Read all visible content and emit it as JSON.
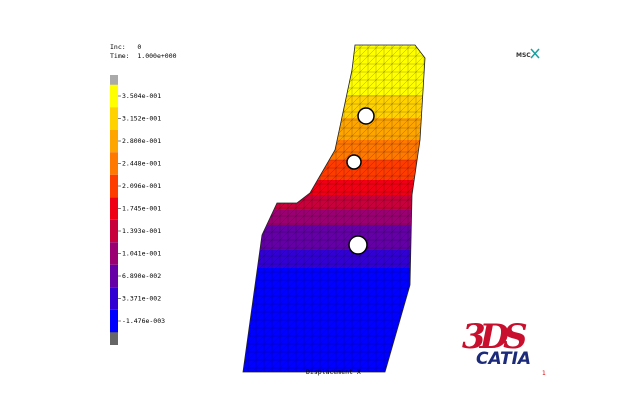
{
  "header": {
    "inc": "Inc:   0",
    "time": "Time:  1.000e+000"
  },
  "legend": {
    "labels": [
      "3.504e-001",
      "3.152e-001",
      "2.800e-001",
      "2.448e-001",
      "2.096e-001",
      "1.745e-001",
      "1.393e-001",
      "1.041e-001",
      "6.890e-002",
      "3.371e-002",
      "-1.476e-003"
    ],
    "colors": [
      "#ffff00",
      "#ffd200",
      "#ffa500",
      "#ff7800",
      "#ff3c00",
      "#f00014",
      "#c8003c",
      "#9b0073",
      "#6400a5",
      "#3200d2",
      "#0000ff"
    ]
  },
  "plot": {
    "result": "Displacement X"
  },
  "logos": {
    "msc": "MSC",
    "ds": "3DS",
    "catia": "CATIA"
  },
  "viewport": "1"
}
